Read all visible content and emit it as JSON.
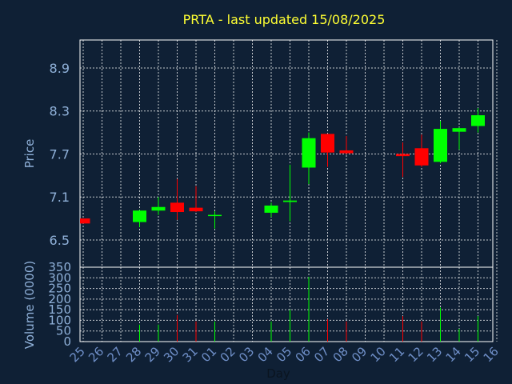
{
  "chart_data": {
    "type": "candlestick",
    "title": "PRTA - last updated 15/08/2025",
    "xlabel": "Day",
    "ylabel": "Price",
    "volume_label": "Volume (0000)",
    "grid": true,
    "colors": {
      "background": "#0f2035",
      "up": "#00ff00",
      "down": "#ff0000",
      "title": "#ffff33",
      "tick": "#8fb0d8"
    },
    "x_ticks": [
      "25",
      "26",
      "27",
      "28",
      "29",
      "30",
      "31",
      "01",
      "02",
      "03",
      "04",
      "05",
      "06",
      "07",
      "08",
      "09",
      "10",
      "11",
      "12",
      "13",
      "14",
      "15",
      "16"
    ],
    "price_axis": {
      "range": [
        6.12,
        9.29
      ],
      "ticks": [
        "6.5",
        "7.1",
        "7.7",
        "8.3",
        "8.9"
      ]
    },
    "volume_axis": {
      "range": [
        0,
        350
      ],
      "ticks": [
        "0",
        "50",
        "100",
        "150",
        "200",
        "250",
        "300",
        "350"
      ]
    },
    "candles": [
      {
        "day": "25",
        "open": 6.8,
        "high": 6.8,
        "low": 6.73,
        "close": 6.73,
        "volume": 0
      },
      {
        "day": "28",
        "open": 6.75,
        "high": 6.92,
        "low": 6.68,
        "close": 6.91,
        "volume": 80
      },
      {
        "day": "29",
        "open": 6.91,
        "high": 7.1,
        "low": 6.85,
        "close": 6.96,
        "volume": 80
      },
      {
        "day": "30",
        "open": 7.02,
        "high": 7.35,
        "low": 6.78,
        "close": 6.89,
        "volume": 125
      },
      {
        "day": "31",
        "open": 6.95,
        "high": 7.25,
        "low": 6.89,
        "close": 6.9,
        "volume": 95
      },
      {
        "day": "01",
        "open": 6.84,
        "high": 6.9,
        "low": 6.66,
        "close": 6.85,
        "volume": 95
      },
      {
        "day": "04",
        "open": 6.88,
        "high": 7.02,
        "low": 6.82,
        "close": 6.98,
        "volume": 95
      },
      {
        "day": "05",
        "open": 7.03,
        "high": 7.55,
        "low": 6.76,
        "close": 7.05,
        "volume": 150
      },
      {
        "day": "06",
        "open": 7.51,
        "high": 8.0,
        "low": 7.28,
        "close": 7.92,
        "volume": 305
      },
      {
        "day": "07",
        "open": 7.98,
        "high": 7.98,
        "low": 7.52,
        "close": 7.72,
        "volume": 105
      },
      {
        "day": "08",
        "open": 7.75,
        "high": 7.95,
        "low": 7.7,
        "close": 7.71,
        "volume": 95
      },
      {
        "day": "11",
        "open": 7.7,
        "high": 7.86,
        "low": 7.38,
        "close": 7.67,
        "volume": 120
      },
      {
        "day": "12",
        "open": 7.78,
        "high": 7.97,
        "low": 7.52,
        "close": 7.54,
        "volume": 95
      },
      {
        "day": "13",
        "open": 7.59,
        "high": 8.16,
        "low": 7.57,
        "close": 8.05,
        "volume": 160
      },
      {
        "day": "14",
        "open": 8.01,
        "high": 8.07,
        "low": 7.76,
        "close": 8.06,
        "volume": 60
      },
      {
        "day": "15",
        "open": 8.09,
        "high": 8.34,
        "low": 8.0,
        "close": 8.24,
        "volume": 120
      }
    ]
  }
}
